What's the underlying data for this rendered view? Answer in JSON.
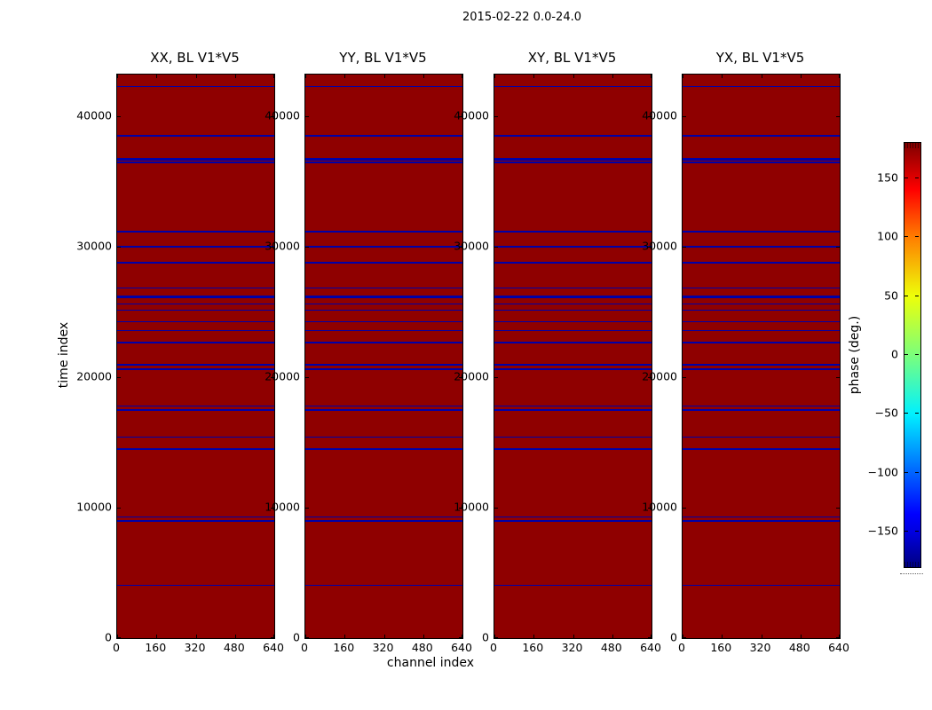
{
  "chart_data": {
    "type": "heatmap",
    "suptitle": "2015-02-22 0.0-24.0",
    "xlabel": "channel index",
    "ylabel": "time index",
    "panels": [
      {
        "title": "XX, BL V1*V5"
      },
      {
        "title": "YY, BL V1*V5"
      },
      {
        "title": "XY, BL V1*V5"
      },
      {
        "title": "YX, BL V1*V5"
      }
    ],
    "xlim": [
      0,
      640
    ],
    "ylim": [
      0,
      43200
    ],
    "x_ticks": [
      0,
      160,
      320,
      480,
      640
    ],
    "y_ticks": [
      0,
      10000,
      20000,
      30000,
      40000
    ],
    "grid": false,
    "background_value_deg": 180,
    "flagged_rows": [
      {
        "time": 42270,
        "weight": 1.5
      },
      {
        "time": 38490,
        "weight": 1.5
      },
      {
        "time": 36720,
        "weight": 3.5
      },
      {
        "time": 36450,
        "weight": 1.5
      },
      {
        "time": 31160,
        "weight": 1.5
      },
      {
        "time": 30020,
        "weight": 2
      },
      {
        "time": 28780,
        "weight": 1.5
      },
      {
        "time": 26850,
        "weight": 1.5
      },
      {
        "time": 26170,
        "weight": 3
      },
      {
        "time": 25600,
        "weight": 1.5
      },
      {
        "time": 25150,
        "weight": 1.5
      },
      {
        "time": 24240,
        "weight": 1.5
      },
      {
        "time": 23560,
        "weight": 1.5
      },
      {
        "time": 22650,
        "weight": 1.5
      },
      {
        "time": 20950,
        "weight": 1.5
      },
      {
        "time": 20610,
        "weight": 1.5
      },
      {
        "time": 17780,
        "weight": 1.5
      },
      {
        "time": 17500,
        "weight": 1.5
      },
      {
        "time": 15400,
        "weight": 1.5
      },
      {
        "time": 14490,
        "weight": 1.5
      },
      {
        "time": 9270,
        "weight": 1.5
      },
      {
        "time": 8980,
        "weight": 1.5
      },
      {
        "time": 4060,
        "weight": 1.5
      }
    ],
    "colors": {
      "panel_background": "#8f0000",
      "flagged_row_line": "#0000a8",
      "axes_edge": "#000000"
    },
    "colorbar": {
      "label": "phase (deg.)",
      "range": [
        -180,
        180
      ],
      "tick_labels": [
        "150",
        "100",
        "50",
        "0",
        "−50",
        "−100",
        "−150"
      ],
      "tick_values": [
        150,
        100,
        50,
        0,
        -50,
        -100,
        -150
      ],
      "colormap": "jet",
      "stops": [
        {
          "pos": 0,
          "color": "#800000"
        },
        {
          "pos": 8.3,
          "color": "#e00000"
        },
        {
          "pos": 11,
          "color": "#ff0000"
        },
        {
          "pos": 22.2,
          "color": "#ff7d00"
        },
        {
          "pos": 36.1,
          "color": "#eeff09"
        },
        {
          "pos": 50,
          "color": "#7bff7b"
        },
        {
          "pos": 63.9,
          "color": "#00f1ff"
        },
        {
          "pos": 77.8,
          "color": "#0063ff"
        },
        {
          "pos": 87.5,
          "color": "#0000ff"
        },
        {
          "pos": 91.7,
          "color": "#0000e0"
        },
        {
          "pos": 100,
          "color": "#000080"
        }
      ]
    }
  }
}
